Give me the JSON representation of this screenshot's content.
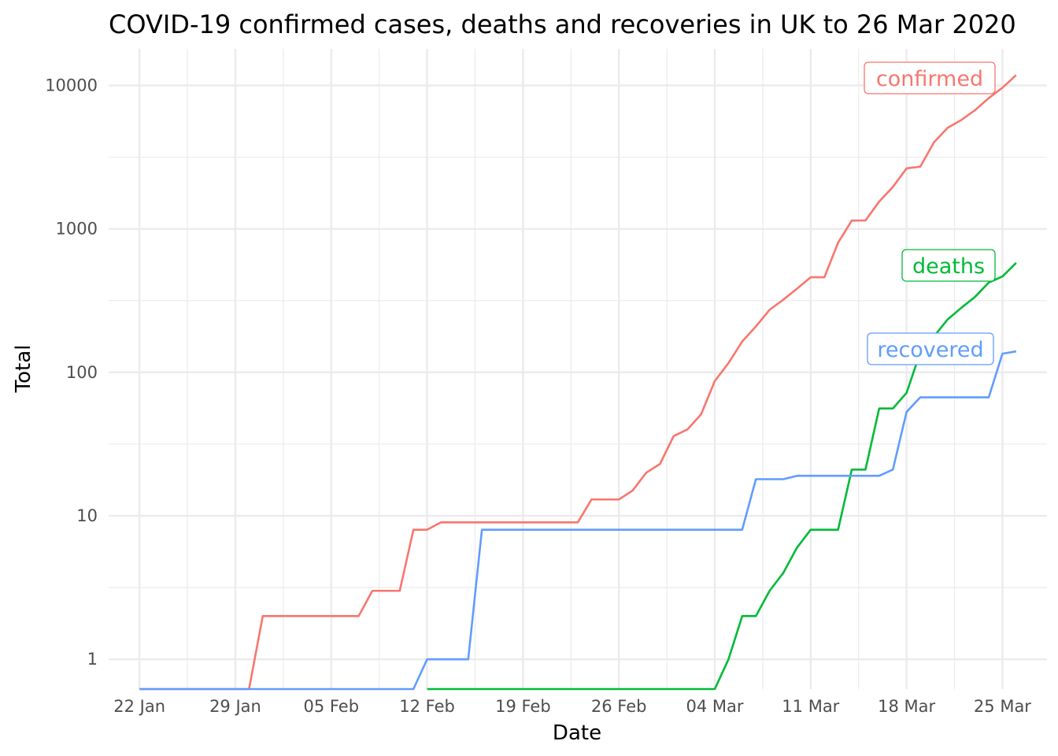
{
  "chart_data": {
    "type": "line",
    "title": "COVID-19 confirmed cases, deaths and recoveries in UK to 26 Mar 2020",
    "xlabel": "Date",
    "ylabel": "Total",
    "y_scale": "log10",
    "ylim": [
      0.62,
      18000
    ],
    "grid": true,
    "legend": "direct labels at line ends",
    "x_start": "2020-01-22",
    "x_end": "2020-03-26",
    "xlim": [
      "2020-01-22",
      "2020-03-26"
    ],
    "x_ticks": [
      "2020-01-22",
      "2020-01-29",
      "2020-02-05",
      "2020-02-12",
      "2020-02-19",
      "2020-02-26",
      "2020-03-04",
      "2020-03-11",
      "2020-03-18",
      "2020-03-25"
    ],
    "x_tick_labels": [
      "22 Jan",
      "29 Jan",
      "05 Feb",
      "12 Feb",
      "19 Feb",
      "26 Feb",
      "04 Mar",
      "11 Mar",
      "18 Mar",
      "25 Mar"
    ],
    "y_ticks": [
      1,
      10,
      100,
      1000,
      10000
    ],
    "y_tick_labels": [
      "1",
      "10",
      "100",
      "1000",
      "10000"
    ],
    "series": [
      {
        "name": "confirmed",
        "color": "#F8766D",
        "values": [
          0,
          0,
          0,
          0,
          0,
          0,
          0,
          0,
          0,
          2,
          2,
          2,
          2,
          2,
          2,
          2,
          2,
          3,
          3,
          3,
          8,
          8,
          9,
          9,
          9,
          9,
          9,
          9,
          9,
          9,
          9,
          9,
          9,
          13,
          13,
          13,
          15,
          20,
          23,
          36,
          40,
          51,
          87,
          116,
          164,
          209,
          273,
          321,
          383,
          460,
          460,
          802,
          1144,
          1145,
          1551,
          1960,
          2642,
          2716,
          4014,
          5067,
          5745,
          6726,
          8164,
          9640,
          11812
        ]
      },
      {
        "name": "deaths",
        "color": "#00BA38",
        "values": [
          0,
          0,
          0,
          0,
          0,
          0,
          0,
          0,
          0,
          0,
          0,
          0,
          0,
          0,
          0,
          0,
          0,
          0,
          0,
          0,
          0,
          0,
          0,
          0,
          0,
          0,
          0,
          0,
          0,
          0,
          0,
          0,
          0,
          0,
          0,
          0,
          0,
          0,
          0,
          0,
          0,
          0,
          0,
          1,
          2,
          2,
          3,
          4,
          6,
          8,
          8,
          8,
          21,
          21,
          56,
          56,
          72,
          138,
          178,
          234,
          282,
          336,
          423,
          466,
          580
        ]
      },
      {
        "name": "recovered",
        "color": "#619CFF",
        "values": [
          0,
          0,
          0,
          0,
          0,
          0,
          0,
          0,
          0,
          0,
          0,
          0,
          0,
          0,
          0,
          0,
          0,
          0,
          0,
          0,
          0,
          1,
          1,
          1,
          1,
          8,
          8,
          8,
          8,
          8,
          8,
          8,
          8,
          8,
          8,
          8,
          8,
          8,
          8,
          8,
          8,
          8,
          8,
          8,
          8,
          18,
          18,
          18,
          19,
          19,
          19,
          19,
          19,
          19,
          19,
          21,
          53,
          67,
          67,
          67,
          67,
          67,
          67,
          135,
          140
        ]
      }
    ]
  }
}
